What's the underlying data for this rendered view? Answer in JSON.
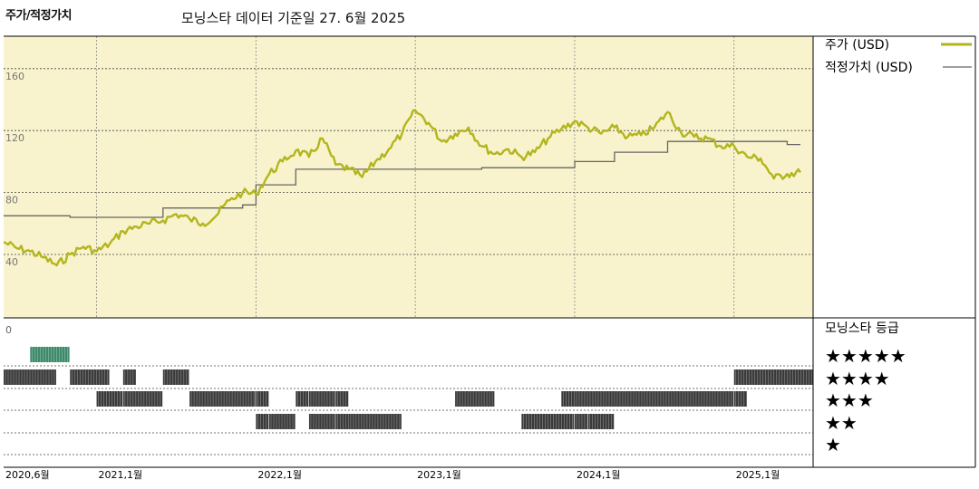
{
  "header": {
    "title": "주가/적정가치",
    "date_line": "모닝스타 데이터 기준일 27. 6월 2025"
  },
  "legend": {
    "price_label": "주가 (USD)",
    "fair_label": "적정가치 (USD)",
    "rating_title": "모닝스타 등급",
    "stars": [
      "★★★★★",
      "★★★★",
      "★★★",
      "★★",
      "★"
    ]
  },
  "colors": {
    "panel_bg": "#f8f3cc",
    "price_line": "#b3b51e",
    "fair_line": "#666666",
    "rating_bar": "#3a3a3a",
    "five_star_bar": "#3d8a6a"
  },
  "chart_data": [
    {
      "type": "line",
      "xlabel": "",
      "ylabel": "",
      "ylim": [
        0,
        160
      ],
      "yticks": [
        40,
        80,
        120,
        160
      ],
      "x_range": [
        "2020-06",
        "2025-06"
      ],
      "x_ticks": [
        "2020,6월",
        "2021,1월",
        "2022,1월",
        "2023,1월",
        "2024,1월",
        "2025,1월"
      ],
      "grid": true,
      "legend_position": "right",
      "series": [
        {
          "name": "주가 (USD)",
          "points": [
            [
              "2020-06",
              48
            ],
            [
              "2020-07",
              44
            ],
            [
              "2020-08",
              42
            ],
            [
              "2020-09",
              38
            ],
            [
              "2020-10",
              33
            ],
            [
              "2020-11",
              40
            ],
            [
              "2020-12",
              45
            ],
            [
              "2021-01",
              42
            ],
            [
              "2021-02",
              47
            ],
            [
              "2021-03",
              55
            ],
            [
              "2021-04",
              58
            ],
            [
              "2021-05",
              60
            ],
            [
              "2021-06",
              62
            ],
            [
              "2021-07",
              66
            ],
            [
              "2021-08",
              63
            ],
            [
              "2021-09",
              60
            ],
            [
              "2021-10",
              65
            ],
            [
              "2021-11",
              75
            ],
            [
              "2021-12",
              80
            ],
            [
              "2022-01",
              79
            ],
            [
              "2022-02",
              92
            ],
            [
              "2022-03",
              100
            ],
            [
              "2022-04",
              107
            ],
            [
              "2022-05",
              103
            ],
            [
              "2022-06",
              115
            ],
            [
              "2022-07",
              98
            ],
            [
              "2022-08",
              95
            ],
            [
              "2022-09",
              90
            ],
            [
              "2022-10",
              100
            ],
            [
              "2022-11",
              108
            ],
            [
              "2022-12",
              118
            ],
            [
              "2023-01",
              133
            ],
            [
              "2023-02",
              125
            ],
            [
              "2023-03",
              113
            ],
            [
              "2023-04",
              118
            ],
            [
              "2023-05",
              122
            ],
            [
              "2023-06",
              110
            ],
            [
              "2023-07",
              105
            ],
            [
              "2023-08",
              108
            ],
            [
              "2023-09",
              103
            ],
            [
              "2023-10",
              106
            ],
            [
              "2023-11",
              115
            ],
            [
              "2023-12",
              121
            ],
            [
              "2024-01",
              126
            ],
            [
              "2024-02",
              122
            ],
            [
              "2024-03",
              118
            ],
            [
              "2024-04",
              122
            ],
            [
              "2024-05",
              116
            ],
            [
              "2024-06",
              117
            ],
            [
              "2024-07",
              122
            ],
            [
              "2024-08",
              132
            ],
            [
              "2024-09",
              119
            ],
            [
              "2024-10",
              116
            ],
            [
              "2024-11",
              115
            ],
            [
              "2024-12",
              110
            ],
            [
              "2025-01",
              110
            ],
            [
              "2025-02",
              103
            ],
            [
              "2025-03",
              102
            ],
            [
              "2025-04",
              89
            ],
            [
              "2025-05",
              92
            ],
            [
              "2025-06",
              93
            ]
          ]
        },
        {
          "name": "적정가치 (USD)",
          "points": [
            [
              "2020-06",
              65
            ],
            [
              "2020-11",
              65
            ],
            [
              "2020-11",
              64
            ],
            [
              "2021-06",
              64
            ],
            [
              "2021-06",
              70
            ],
            [
              "2021-12",
              70
            ],
            [
              "2021-12",
              72
            ],
            [
              "2022-01",
              72
            ],
            [
              "2022-01",
              85
            ],
            [
              "2022-04",
              85
            ],
            [
              "2022-04",
              95
            ],
            [
              "2023-06",
              95
            ],
            [
              "2023-06",
              96
            ],
            [
              "2024-01",
              96
            ],
            [
              "2024-01",
              100
            ],
            [
              "2024-04",
              100
            ],
            [
              "2024-04",
              106
            ],
            [
              "2024-08",
              106
            ],
            [
              "2024-08",
              113
            ],
            [
              "2025-05",
              113
            ],
            [
              "2025-05",
              111
            ],
            [
              "2025-06",
              111
            ]
          ]
        }
      ]
    },
    {
      "type": "heatmap",
      "title": "모닝스타 등급",
      "ylabel": "",
      "y_top_label": "0",
      "rows": [
        "★★★★★",
        "★★★★",
        "★★★",
        "★★",
        "★"
      ],
      "periods": [
        {
          "stars": 5,
          "start": "2020-08",
          "end": "2020-10"
        },
        {
          "stars": 4,
          "start": "2020-06",
          "end": "2020-09"
        },
        {
          "stars": 4,
          "start": "2020-11",
          "end": "2021-01"
        },
        {
          "stars": 4,
          "start": "2021-03",
          "end": "2021-03"
        },
        {
          "stars": 4,
          "start": "2021-06",
          "end": "2021-07"
        },
        {
          "stars": 4,
          "start": "2025-01",
          "end": "2025-06"
        },
        {
          "stars": 3,
          "start": "2021-01",
          "end": "2021-02"
        },
        {
          "stars": 3,
          "start": "2021-03",
          "end": "2021-05"
        },
        {
          "stars": 3,
          "start": "2021-08",
          "end": "2021-12"
        },
        {
          "stars": 3,
          "start": "2022-01",
          "end": "2022-01"
        },
        {
          "stars": 3,
          "start": "2022-04",
          "end": "2022-04"
        },
        {
          "stars": 3,
          "start": "2022-05",
          "end": "2022-06"
        },
        {
          "stars": 3,
          "start": "2022-07",
          "end": "2022-07"
        },
        {
          "stars": 3,
          "start": "2023-04",
          "end": "2023-06"
        },
        {
          "stars": 3,
          "start": "2023-12",
          "end": "2024-01"
        },
        {
          "stars": 3,
          "start": "2024-01",
          "end": "2024-12"
        },
        {
          "stars": 3,
          "start": "2025-01",
          "end": "2025-01"
        },
        {
          "stars": 2,
          "start": "2022-01",
          "end": "2022-01"
        },
        {
          "stars": 2,
          "start": "2022-02",
          "end": "2022-03"
        },
        {
          "stars": 2,
          "start": "2022-05",
          "end": "2022-06"
        },
        {
          "stars": 2,
          "start": "2022-07",
          "end": "2022-08"
        },
        {
          "stars": 2,
          "start": "2022-08",
          "end": "2022-11"
        },
        {
          "stars": 2,
          "start": "2023-09",
          "end": "2023-12"
        },
        {
          "stars": 2,
          "start": "2024-01",
          "end": "2024-01"
        },
        {
          "stars": 2,
          "start": "2024-02",
          "end": "2024-03"
        }
      ]
    }
  ]
}
